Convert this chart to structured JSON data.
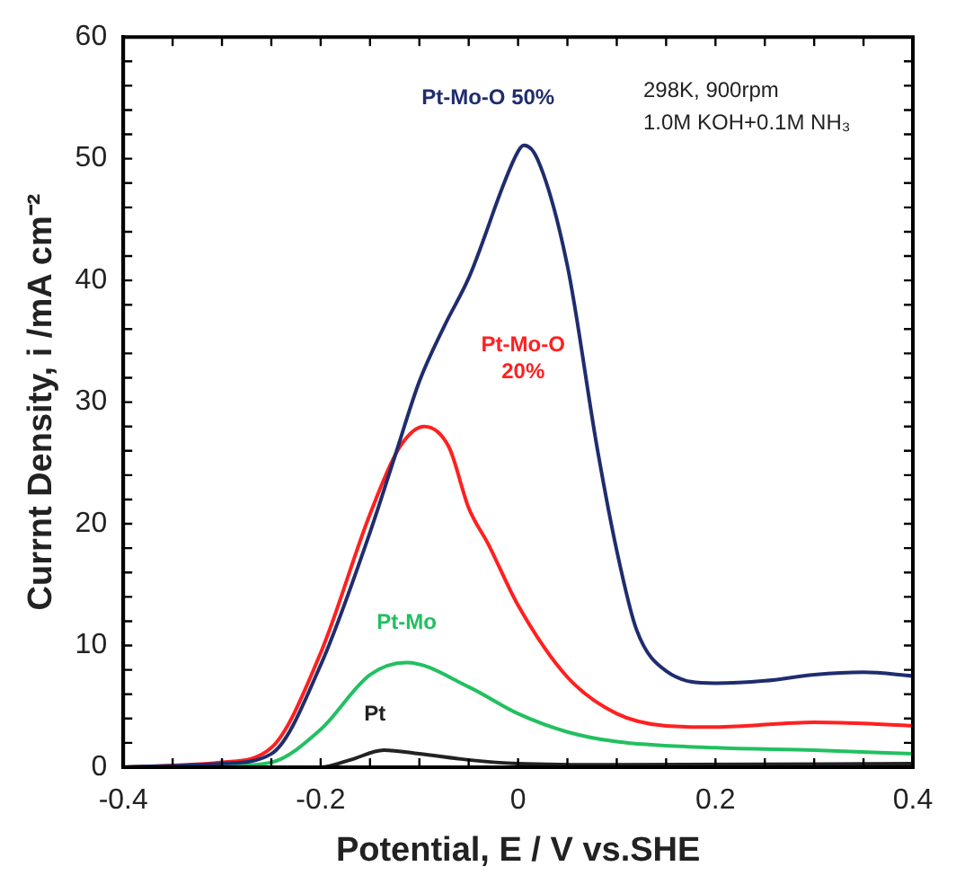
{
  "chart_data": {
    "type": "line",
    "xlabel": "Potential, E / V vs.SHE",
    "ylabel": "Currnt Density, i /mA cm⁻²",
    "xlim": [
      -0.4,
      0.4
    ],
    "xticks": [
      -0.4,
      -0.2,
      0,
      0.2,
      0.4
    ],
    "ylim": [
      0,
      60
    ],
    "yticks": [
      0,
      10,
      20,
      30,
      40,
      50,
      60
    ],
    "grid": false,
    "legend": false,
    "marker": "none",
    "line_style": "solid",
    "annotations": [
      "298K, 900rpm",
      "1.0M KOH+0.1M NH₃"
    ],
    "series": [
      {
        "name": "Pt-Mo-O 50%",
        "color": "#1f2d6e",
        "x": [
          -0.4,
          -0.3,
          -0.25,
          -0.2,
          -0.15,
          -0.125,
          -0.1,
          -0.075,
          -0.05,
          0,
          0.006,
          0.02,
          0.05,
          0.08,
          0.1,
          0.12,
          0.15,
          0.2,
          0.25,
          0.3,
          0.35,
          0.4
        ],
        "values": [
          0,
          0.3,
          1.1,
          8.4,
          19.3,
          25.5,
          31.7,
          36.2,
          40.2,
          50.6,
          51.1,
          49.9,
          41.2,
          26.3,
          17.8,
          11.3,
          7.9,
          6.9,
          7.1,
          7.6,
          7.8,
          7.5
        ]
      },
      {
        "name": "Pt-Mo-O 20%",
        "color": "#ff2020",
        "x": [
          -0.4,
          -0.3,
          -0.25,
          -0.2,
          -0.15,
          -0.12,
          -0.095,
          -0.07,
          -0.05,
          -0.03,
          0,
          0.05,
          0.1,
          0.15,
          0.2,
          0.3,
          0.35,
          0.4
        ],
        "values": [
          0,
          0.4,
          1.6,
          9.4,
          20.8,
          26.3,
          28.0,
          26.3,
          21.3,
          18.3,
          13.3,
          7.4,
          4.4,
          3.4,
          3.3,
          3.7,
          3.6,
          3.4
        ]
      },
      {
        "name": "Pt-Mo",
        "color": "#22c060",
        "x": [
          -0.4,
          -0.3,
          -0.25,
          -0.2,
          -0.15,
          -0.113,
          -0.05,
          0,
          0.05,
          0.1,
          0.2,
          0.3,
          0.4
        ],
        "values": [
          0,
          0.1,
          0.4,
          3.1,
          7.6,
          8.6,
          6.6,
          4.4,
          2.9,
          2.1,
          1.6,
          1.4,
          1.1
        ]
      },
      {
        "name": "Pt",
        "color": "#222222",
        "x": [
          -0.4,
          -0.2,
          -0.17,
          -0.136,
          -0.1,
          -0.05,
          0,
          0.1,
          0.4
        ],
        "values": [
          0,
          0,
          0.6,
          1.4,
          1.1,
          0.6,
          0.3,
          0.2,
          0.3
        ]
      }
    ]
  }
}
